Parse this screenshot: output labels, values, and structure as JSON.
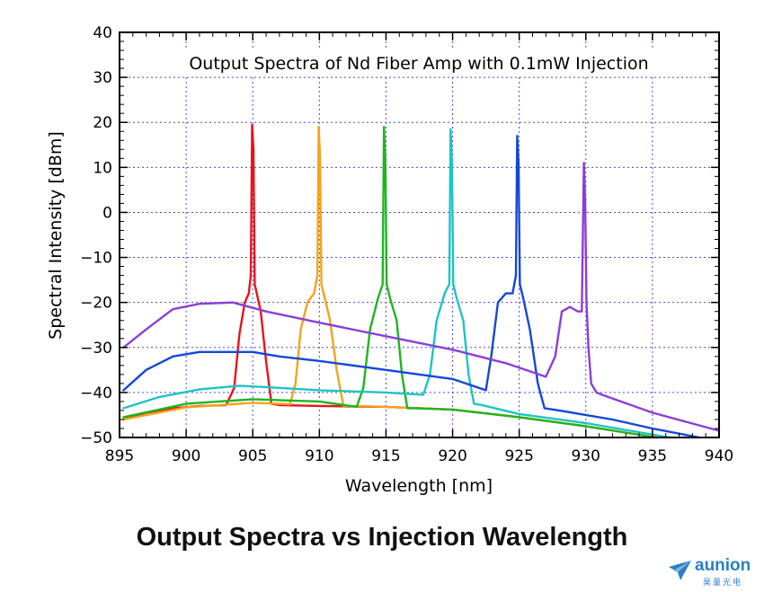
{
  "chart_data": {
    "type": "line",
    "title": "Output Spectra of Nd Fiber Amp with 0.1mW Injection",
    "xlabel": "Wavelength [nm]",
    "ylabel": "Spectral Intensity [dBm]",
    "xlim": [
      895,
      940
    ],
    "ylim": [
      -50,
      40
    ],
    "xticks": [
      895,
      900,
      905,
      910,
      915,
      920,
      925,
      930,
      935,
      940
    ],
    "yticks": [
      40,
      30,
      20,
      10,
      0,
      -10,
      -20,
      -30,
      -40,
      -50
    ],
    "ytick_labels": [
      "40",
      "30",
      "20",
      "10",
      "0",
      "−10",
      "−20",
      "−30",
      "−40",
      "−50"
    ],
    "grid": true,
    "legend": "none",
    "series": [
      {
        "color": "#e8141b",
        "x": [
          895.3,
          897,
          899,
          901,
          903,
          903.6,
          904.0,
          904.4,
          904.7,
          904.85,
          904.95,
          905.05,
          905.15,
          905.3,
          905.6,
          906.0,
          906.4,
          907,
          910,
          915,
          920,
          925,
          930,
          935.3
        ],
        "y": [
          -46,
          -44.5,
          -43.5,
          -43,
          -42.8,
          -39,
          -27,
          -20,
          -18,
          -14,
          19.5,
          14,
          -16,
          -18,
          -22,
          -33,
          -42.5,
          -42.8,
          -43,
          -43.2,
          -43.8,
          -45.5,
          -47.5,
          -50
        ]
      },
      {
        "color": "#f5a31a",
        "x": [
          895.3,
          900,
          905,
          907.8,
          908.2,
          908.6,
          909.1,
          909.6,
          909.85,
          909.95,
          910.05,
          910.15,
          910.4,
          910.8,
          911.3,
          911.8,
          913,
          915,
          920,
          925,
          930,
          935.3
        ],
        "y": [
          -46,
          -43.3,
          -42.3,
          -42.6,
          -38,
          -26,
          -20,
          -18,
          -14,
          19,
          12,
          -16,
          -19,
          -24,
          -35,
          -43,
          -43,
          -43.2,
          -43.8,
          -45.5,
          -47.5,
          -50
        ]
      },
      {
        "color": "#1fb51f",
        "x": [
          895.3,
          900,
          905,
          910,
          912.8,
          913.3,
          913.8,
          914.4,
          914.75,
          914.85,
          914.95,
          915.05,
          915.3,
          915.8,
          916.2,
          916.6,
          917.2,
          920,
          925,
          930,
          935.3
        ],
        "y": [
          -45.5,
          -42.5,
          -41.5,
          -42,
          -43.2,
          -39,
          -26,
          -19,
          -16,
          19,
          12,
          -16,
          -19,
          -24,
          -36,
          -43.5,
          -43.5,
          -43.8,
          -45.5,
          -47.5,
          -50
        ]
      },
      {
        "color": "#1dc4c4",
        "x": [
          895.3,
          898,
          901,
          904,
          906,
          910,
          915,
          917.8,
          918.3,
          918.8,
          919.4,
          919.75,
          919.85,
          919.95,
          920.05,
          920.3,
          920.8,
          921.2,
          921.6,
          922.2,
          925,
          930,
          936.3
        ],
        "y": [
          -43.5,
          -41,
          -39.3,
          -38.5,
          -38.8,
          -39.5,
          -40,
          -40.5,
          -36,
          -24,
          -18,
          -16,
          18.5,
          11,
          -16,
          -19,
          -24,
          -36,
          -42.5,
          -42.8,
          -44.8,
          -46.8,
          -50
        ]
      },
      {
        "color": "#1447d9",
        "x": [
          895.3,
          897,
          899,
          901,
          903,
          905,
          907,
          910,
          915,
          920,
          922.5,
          922.9,
          923.4,
          924.0,
          924.5,
          924.75,
          924.85,
          924.95,
          925.05,
          925.3,
          925.8,
          926.4,
          926.9,
          928,
          932,
          935,
          938.5
        ],
        "y": [
          -39.5,
          -35,
          -32,
          -31,
          -31,
          -31,
          -32,
          -33,
          -35,
          -37,
          -39.5,
          -32,
          -20,
          -18,
          -18,
          -14,
          17,
          11,
          -16,
          -19,
          -26,
          -38,
          -43.5,
          -44,
          -46,
          -48,
          -50
        ]
      },
      {
        "color": "#8a3fd6",
        "x": [
          895.3,
          897,
          899,
          901,
          903.5,
          906,
          910,
          915,
          920,
          924,
          927,
          927.7,
          928.2,
          928.8,
          929.4,
          929.7,
          929.85,
          929.95,
          930.05,
          930.2,
          930.4,
          930.8,
          931.2,
          935,
          940
        ],
        "y": [
          -30,
          -26,
          -21.5,
          -20.3,
          -20,
          -22,
          -24.5,
          -27.5,
          -30.5,
          -33.5,
          -36.5,
          -32,
          -22,
          -21,
          -22,
          -22,
          11,
          3,
          -20,
          -30,
          -38,
          -40,
          -40.5,
          -44.5,
          -48.5
        ]
      }
    ]
  },
  "caption": "Output Spectra vs  Injection Wavelength",
  "logo": {
    "text": "aunion",
    "subtext": "昊量光电",
    "color": "#2a7fc4"
  }
}
